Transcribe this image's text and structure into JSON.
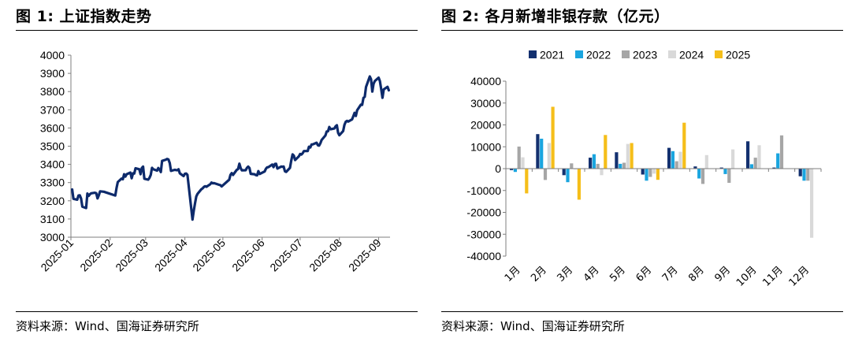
{
  "left": {
    "title": "图 1:  上证指数走势",
    "source": "资料来源：Wind、国海证券研究所"
  },
  "right": {
    "title": "图 2:  各月新增非银存款（亿元）",
    "source": "资料来源：Wind、国海证券研究所"
  },
  "colors": {
    "index_line": "#0d2a6b",
    "s2021": "#13306f",
    "s2022": "#1aa5df",
    "s2023": "#a6a6a6",
    "s2024": "#d9d9d9",
    "s2025": "#f5be1a"
  },
  "chart_data": [
    {
      "type": "line",
      "title": "",
      "xlabel": "",
      "ylabel": "",
      "ylim": [
        3000,
        4000
      ],
      "yticks": [
        3000,
        3100,
        3200,
        3300,
        3400,
        3500,
        3600,
        3700,
        3800,
        3900,
        4000
      ],
      "xlim": [
        "2025-01-01",
        "2025-09-10"
      ],
      "xticks": [
        "2025-01",
        "2025-02",
        "2025-03",
        "2025-04",
        "2025-05",
        "2025-06",
        "2025-07",
        "2025-08",
        "2025-09"
      ],
      "grid": false,
      "series": [
        {
          "points": [
            [
              "2025-01-02",
              3262
            ],
            [
              "2025-01-03",
              3211
            ],
            [
              "2025-01-06",
              3206
            ],
            [
              "2025-01-07",
              3229
            ],
            [
              "2025-01-08",
              3230
            ],
            [
              "2025-01-09",
              3212
            ],
            [
              "2025-01-10",
              3168
            ],
            [
              "2025-01-13",
              3160
            ],
            [
              "2025-01-14",
              3240
            ],
            [
              "2025-01-15",
              3227
            ],
            [
              "2025-01-16",
              3236
            ],
            [
              "2025-01-17",
              3241
            ],
            [
              "2025-01-20",
              3244
            ],
            [
              "2025-01-21",
              3242
            ],
            [
              "2025-01-22",
              3213
            ],
            [
              "2025-01-23",
              3230
            ],
            [
              "2025-01-24",
              3252
            ],
            [
              "2025-01-27",
              3250
            ],
            [
              "2025-02-05",
              3229
            ],
            [
              "2025-02-06",
              3270
            ],
            [
              "2025-02-07",
              3303
            ],
            [
              "2025-02-10",
              3322
            ],
            [
              "2025-02-11",
              3318
            ],
            [
              "2025-02-12",
              3346
            ],
            [
              "2025-02-13",
              3333
            ],
            [
              "2025-02-14",
              3346
            ],
            [
              "2025-02-17",
              3355
            ],
            [
              "2025-02-18",
              3324
            ],
            [
              "2025-02-19",
              3351
            ],
            [
              "2025-02-20",
              3350
            ],
            [
              "2025-02-21",
              3379
            ],
            [
              "2025-02-24",
              3373
            ],
            [
              "2025-02-25",
              3346
            ],
            [
              "2025-02-26",
              3380
            ],
            [
              "2025-02-27",
              3388
            ],
            [
              "2025-02-28",
              3321
            ],
            [
              "2025-03-03",
              3316
            ],
            [
              "2025-03-04",
              3325
            ],
            [
              "2025-03-05",
              3342
            ],
            [
              "2025-03-06",
              3381
            ],
            [
              "2025-03-07",
              3373
            ],
            [
              "2025-03-10",
              3366
            ],
            [
              "2025-03-11",
              3380
            ],
            [
              "2025-03-12",
              3371
            ],
            [
              "2025-03-13",
              3358
            ],
            [
              "2025-03-14",
              3419
            ],
            [
              "2025-03-17",
              3426
            ],
            [
              "2025-03-18",
              3430
            ],
            [
              "2025-03-19",
              3427
            ],
            [
              "2025-03-20",
              3408
            ],
            [
              "2025-03-21",
              3364
            ],
            [
              "2025-03-24",
              3370
            ],
            [
              "2025-03-25",
              3369
            ],
            [
              "2025-03-26",
              3368
            ],
            [
              "2025-03-27",
              3373
            ],
            [
              "2025-03-28",
              3351
            ],
            [
              "2025-03-31",
              3336
            ],
            [
              "2025-04-01",
              3348
            ],
            [
              "2025-04-02",
              3350
            ],
            [
              "2025-04-03",
              3342
            ],
            [
              "2025-04-07",
              3097
            ],
            [
              "2025-04-08",
              3145
            ],
            [
              "2025-04-09",
              3186
            ],
            [
              "2025-04-10",
              3224
            ],
            [
              "2025-04-11",
              3238
            ],
            [
              "2025-04-14",
              3263
            ],
            [
              "2025-04-15",
              3268
            ],
            [
              "2025-04-16",
              3276
            ],
            [
              "2025-04-17",
              3280
            ],
            [
              "2025-04-18",
              3277
            ],
            [
              "2025-04-21",
              3291
            ],
            [
              "2025-04-22",
              3300
            ],
            [
              "2025-04-23",
              3296
            ],
            [
              "2025-04-24",
              3297
            ],
            [
              "2025-04-25",
              3295
            ],
            [
              "2025-04-28",
              3288
            ],
            [
              "2025-04-29",
              3286
            ],
            [
              "2025-04-30",
              3279
            ],
            [
              "2025-05-06",
              3316
            ],
            [
              "2025-05-07",
              3343
            ],
            [
              "2025-05-08",
              3352
            ],
            [
              "2025-05-09",
              3342
            ],
            [
              "2025-05-12",
              3370
            ],
            [
              "2025-05-13",
              3374
            ],
            [
              "2025-05-14",
              3404
            ],
            [
              "2025-05-15",
              3380
            ],
            [
              "2025-05-16",
              3367
            ],
            [
              "2025-05-19",
              3368
            ],
            [
              "2025-05-20",
              3381
            ],
            [
              "2025-05-21",
              3388
            ],
            [
              "2025-05-22",
              3380
            ],
            [
              "2025-05-23",
              3348
            ],
            [
              "2025-05-26",
              3346
            ],
            [
              "2025-05-27",
              3341
            ],
            [
              "2025-05-28",
              3340
            ],
            [
              "2025-05-29",
              3363
            ],
            [
              "2025-05-30",
              3347
            ],
            [
              "2025-06-03",
              3361
            ],
            [
              "2025-06-04",
              3376
            ],
            [
              "2025-06-05",
              3384
            ],
            [
              "2025-06-06",
              3385
            ],
            [
              "2025-06-09",
              3399
            ],
            [
              "2025-06-10",
              3385
            ],
            [
              "2025-06-11",
              3402
            ],
            [
              "2025-06-12",
              3403
            ],
            [
              "2025-06-13",
              3377
            ],
            [
              "2025-06-16",
              3388
            ],
            [
              "2025-06-17",
              3387
            ],
            [
              "2025-06-18",
              3388
            ],
            [
              "2025-06-19",
              3362
            ],
            [
              "2025-06-20",
              3359
            ],
            [
              "2025-06-23",
              3381
            ],
            [
              "2025-06-24",
              3420
            ],
            [
              "2025-06-25",
              3455
            ],
            [
              "2025-06-26",
              3448
            ],
            [
              "2025-06-27",
              3424
            ],
            [
              "2025-06-30",
              3444
            ],
            [
              "2025-07-01",
              3457
            ],
            [
              "2025-07-02",
              3454
            ],
            [
              "2025-07-03",
              3461
            ],
            [
              "2025-07-04",
              3473
            ],
            [
              "2025-07-07",
              3473
            ],
            [
              "2025-07-08",
              3497
            ],
            [
              "2025-07-09",
              3493
            ],
            [
              "2025-07-10",
              3509
            ],
            [
              "2025-07-11",
              3510
            ],
            [
              "2025-07-14",
              3519
            ],
            [
              "2025-07-15",
              3505
            ],
            [
              "2025-07-16",
              3503
            ],
            [
              "2025-07-17",
              3516
            ],
            [
              "2025-07-18",
              3534
            ],
            [
              "2025-07-21",
              3559
            ],
            [
              "2025-07-22",
              3581
            ],
            [
              "2025-07-23",
              3582
            ],
            [
              "2025-07-24",
              3605
            ],
            [
              "2025-07-25",
              3593
            ],
            [
              "2025-07-28",
              3597
            ],
            [
              "2025-07-29",
              3609
            ],
            [
              "2025-07-30",
              3615
            ],
            [
              "2025-07-31",
              3573
            ],
            [
              "2025-08-01",
              3560
            ],
            [
              "2025-08-04",
              3583
            ],
            [
              "2025-08-05",
              3617
            ],
            [
              "2025-08-06",
              3634
            ],
            [
              "2025-08-07",
              3639
            ],
            [
              "2025-08-08",
              3635
            ],
            [
              "2025-08-11",
              3647
            ],
            [
              "2025-08-12",
              3665
            ],
            [
              "2025-08-13",
              3683
            ],
            [
              "2025-08-14",
              3666
            ],
            [
              "2025-08-15",
              3697
            ],
            [
              "2025-08-18",
              3728
            ],
            [
              "2025-08-19",
              3727
            ],
            [
              "2025-08-20",
              3766
            ],
            [
              "2025-08-21",
              3771
            ],
            [
              "2025-08-22",
              3825
            ],
            [
              "2025-08-25",
              3883
            ],
            [
              "2025-08-26",
              3868
            ],
            [
              "2025-08-27",
              3800
            ],
            [
              "2025-08-28",
              3843
            ],
            [
              "2025-08-29",
              3858
            ],
            [
              "2025-09-01",
              3876
            ],
            [
              "2025-09-02",
              3858
            ],
            [
              "2025-09-03",
              3813
            ],
            [
              "2025-09-04",
              3766
            ],
            [
              "2025-09-05",
              3812
            ],
            [
              "2025-09-08",
              3826
            ],
            [
              "2025-09-09",
              3807
            ]
          ]
        }
      ]
    },
    {
      "type": "bar",
      "title": "",
      "xlabel": "",
      "ylabel": "",
      "ylim": [
        -40000,
        40000
      ],
      "yticks": [
        -40000,
        -30000,
        -20000,
        -10000,
        0,
        10000,
        20000,
        30000,
        40000
      ],
      "legend_position": "top",
      "grid": false,
      "categories": [
        "1月",
        "2月",
        "3月",
        "4月",
        "5月",
        "6月",
        "7月",
        "8月",
        "9月",
        "10月",
        "11月",
        "12月"
      ],
      "series": [
        {
          "name": "2021",
          "values": [
            -700,
            15800,
            -3000,
            5000,
            7500,
            -2700,
            9500,
            1000,
            500,
            12500,
            500,
            -3500
          ]
        },
        {
          "name": "2022",
          "values": [
            -1500,
            13700,
            -6200,
            6600,
            2200,
            -5500,
            8000,
            -4500,
            -2500,
            2000,
            7000,
            -5500
          ]
        },
        {
          "name": "2023",
          "values": [
            10100,
            -5200,
            2400,
            2200,
            2700,
            -3800,
            3400,
            -7000,
            -6500,
            5000,
            15200,
            -5500
          ]
        },
        {
          "name": "2024",
          "values": [
            5200,
            11700,
            -400,
            -3000,
            11300,
            -2300,
            7700,
            6200,
            8800,
            10700,
            0,
            -31600
          ]
        },
        {
          "name": "2025",
          "values": [
            -11300,
            28300,
            -14200,
            15400,
            11700,
            -5100,
            21000,
            0,
            0,
            0,
            0,
            0
          ]
        }
      ]
    }
  ]
}
